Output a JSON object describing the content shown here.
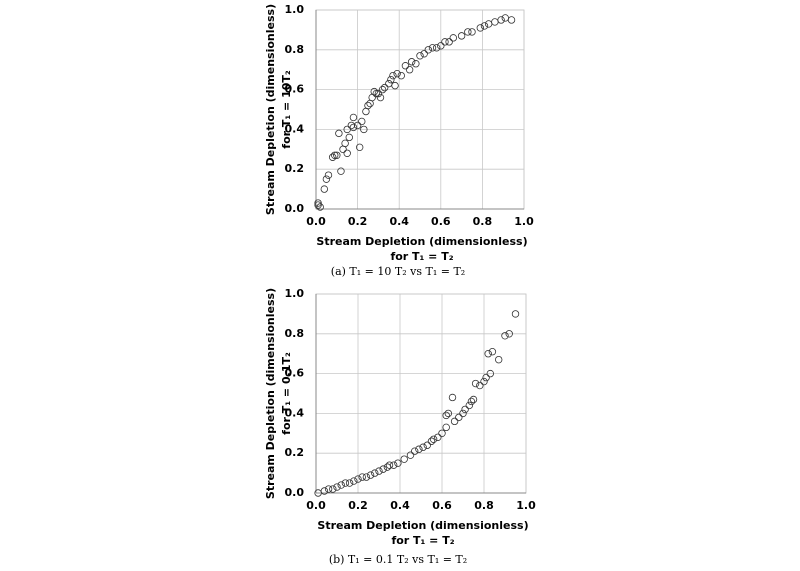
{
  "chart_data": [
    {
      "type": "scatter",
      "x_label": "Stream Depletion (dimensionless)",
      "x_label_2": "for T₁ = T₂",
      "y_label": "Stream Depletion (dimensionless)",
      "y_label_2": "for T₁ = 10T₂",
      "caption": "(a)  T₁ = 10 T₂ vs T₁ = T₂",
      "xlim": [
        0,
        1
      ],
      "ylim": [
        0,
        1
      ],
      "xticks": [
        {
          "value": 0,
          "label": "0.0"
        },
        0.2,
        0.4,
        0.6,
        0.8,
        {
          "value": 1,
          "label": "1.0"
        }
      ],
      "yticks": [
        {
          "value": 0,
          "label": "0.0"
        },
        0.2,
        0.4,
        0.6,
        0.8,
        {
          "value": 1,
          "label": "1.0"
        }
      ],
      "grid": true,
      "marker_color": "#333333",
      "x": [
        0.01,
        0.01,
        0.02,
        0.04,
        0.05,
        0.06,
        0.08,
        0.09,
        0.1,
        0.11,
        0.12,
        0.13,
        0.14,
        0.15,
        0.15,
        0.16,
        0.17,
        0.18,
        0.18,
        0.2,
        0.21,
        0.22,
        0.23,
        0.24,
        0.25,
        0.26,
        0.27,
        0.28,
        0.29,
        0.3,
        0.31,
        0.32,
        0.33,
        0.35,
        0.36,
        0.37,
        0.38,
        0.39,
        0.41,
        0.43,
        0.45,
        0.46,
        0.48,
        0.5,
        0.52,
        0.54,
        0.56,
        0.58,
        0.6,
        0.62,
        0.64,
        0.66,
        0.7,
        0.73,
        0.75,
        0.79,
        0.81,
        0.83,
        0.86,
        0.89,
        0.91,
        0.94
      ],
      "values": [
        0.02,
        0.03,
        0.01,
        0.1,
        0.15,
        0.17,
        0.26,
        0.27,
        0.27,
        0.38,
        0.19,
        0.3,
        0.33,
        0.28,
        0.4,
        0.36,
        0.42,
        0.41,
        0.46,
        0.42,
        0.31,
        0.44,
        0.4,
        0.49,
        0.52,
        0.53,
        0.56,
        0.59,
        0.58,
        0.58,
        0.56,
        0.6,
        0.61,
        0.63,
        0.65,
        0.67,
        0.62,
        0.68,
        0.67,
        0.72,
        0.7,
        0.74,
        0.73,
        0.77,
        0.78,
        0.8,
        0.81,
        0.81,
        0.82,
        0.84,
        0.84,
        0.86,
        0.87,
        0.89,
        0.89,
        0.91,
        0.92,
        0.93,
        0.94,
        0.95,
        0.96,
        0.95
      ]
    },
    {
      "type": "scatter",
      "x_label": "Stream Depletion (dimensionless)",
      "x_label_2": "for T₁ = T₂",
      "y_label": "Stream Depletion (dimensionless)",
      "y_label_2": "for T₁ = 0.1T₂",
      "caption": "(b)  T₁ = 0.1 T₂ vs T₁ = T₂",
      "xlim": [
        0,
        1
      ],
      "ylim": [
        0,
        1
      ],
      "xticks": [
        {
          "value": 0,
          "label": "0.0"
        },
        0.2,
        0.4,
        0.6,
        0.8,
        {
          "value": 1,
          "label": "1.0"
        }
      ],
      "yticks": [
        {
          "value": 0,
          "label": "0.0"
        },
        0.2,
        0.4,
        0.6,
        0.8,
        {
          "value": 1,
          "label": "1.0"
        }
      ],
      "grid": true,
      "marker_color": "#333333",
      "x": [
        0.01,
        0.04,
        0.06,
        0.08,
        0.1,
        0.12,
        0.14,
        0.16,
        0.18,
        0.2,
        0.22,
        0.24,
        0.26,
        0.28,
        0.3,
        0.32,
        0.34,
        0.35,
        0.37,
        0.39,
        0.42,
        0.45,
        0.47,
        0.49,
        0.51,
        0.53,
        0.55,
        0.56,
        0.58,
        0.6,
        0.62,
        0.62,
        0.63,
        0.65,
        0.66,
        0.68,
        0.7,
        0.71,
        0.73,
        0.74,
        0.75,
        0.76,
        0.78,
        0.8,
        0.81,
        0.82,
        0.83,
        0.84,
        0.87,
        0.9,
        0.92,
        0.95
      ],
      "values": [
        0.0,
        0.01,
        0.02,
        0.02,
        0.03,
        0.04,
        0.05,
        0.05,
        0.06,
        0.07,
        0.08,
        0.08,
        0.09,
        0.1,
        0.11,
        0.12,
        0.13,
        0.14,
        0.14,
        0.15,
        0.17,
        0.19,
        0.21,
        0.22,
        0.23,
        0.24,
        0.26,
        0.27,
        0.28,
        0.3,
        0.33,
        0.39,
        0.4,
        0.48,
        0.36,
        0.38,
        0.4,
        0.42,
        0.44,
        0.46,
        0.47,
        0.55,
        0.54,
        0.56,
        0.58,
        0.7,
        0.6,
        0.71,
        0.67,
        0.79,
        0.8,
        0.9
      ]
    }
  ]
}
